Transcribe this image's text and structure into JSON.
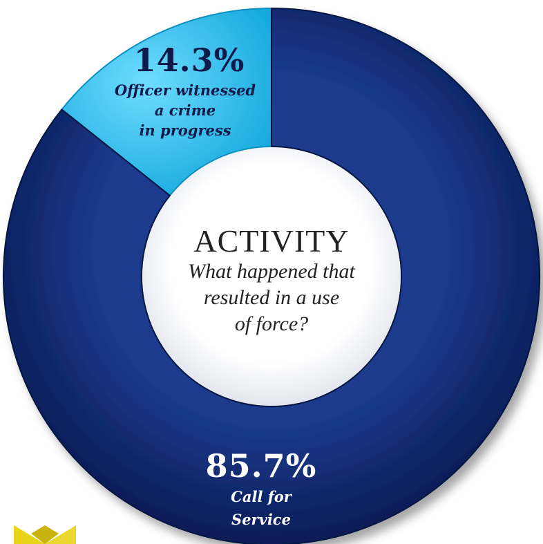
{
  "chart_data": {
    "type": "pie",
    "donut": true,
    "title": "ACTIVITY",
    "subtitle_lines": [
      "What happened that",
      "resulted in a use",
      "of force?"
    ],
    "slices": [
      {
        "value": 14.3,
        "value_label": "14.3%",
        "caption_lines": [
          "Officer witnessed",
          "a crime",
          "in progress"
        ],
        "color": "#2ec4f0",
        "text_color": "#0d1a4a"
      },
      {
        "value": 85.7,
        "value_label": "85.7%",
        "caption_lines": [
          "Call for",
          "Service"
        ],
        "color": "#0e2670",
        "text_color": "#ffffff"
      }
    ]
  },
  "colors": {
    "background": "#ffffff",
    "dark_slice": "#0e2670",
    "light_slice": "#2ec4f0",
    "badge": "#e8d41a"
  },
  "decorations": {
    "badge_icon": "yellow-star-badge-icon"
  }
}
